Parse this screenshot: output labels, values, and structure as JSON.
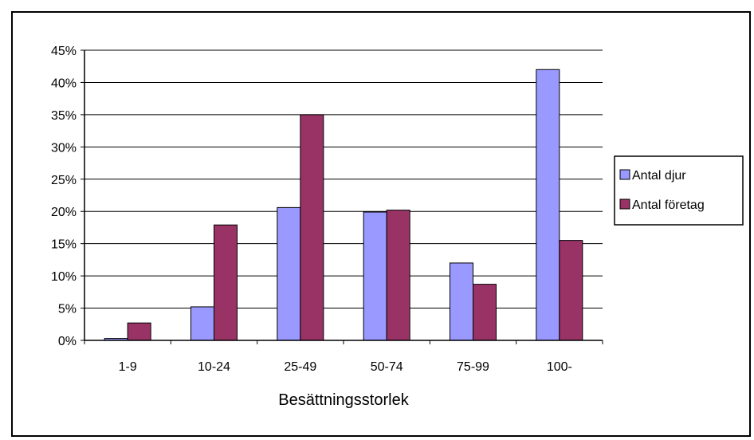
{
  "chart_data": {
    "type": "bar",
    "title": "",
    "xlabel": "Besättningsstorlek",
    "ylabel": "",
    "categories": [
      "1-9",
      "10-24",
      "25-49",
      "50-74",
      "75-99",
      "100-"
    ],
    "series": [
      {
        "name": "Antal djur",
        "color": "#9999FF",
        "values": [
          0.3,
          5.2,
          20.6,
          19.9,
          12.0,
          42.0
        ]
      },
      {
        "name": "Antal företag",
        "color": "#993366",
        "values": [
          2.7,
          17.9,
          35.0,
          20.2,
          8.7,
          15.5
        ]
      }
    ],
    "ylim": [
      0,
      45
    ],
    "yticks": [
      0,
      5,
      10,
      15,
      20,
      25,
      30,
      35,
      40,
      45
    ],
    "ytick_labels": [
      "0%",
      "5%",
      "10%",
      "15%",
      "20%",
      "25%",
      "30%",
      "35%",
      "40%",
      "45%"
    ],
    "grid": true,
    "legend_position": "right"
  }
}
